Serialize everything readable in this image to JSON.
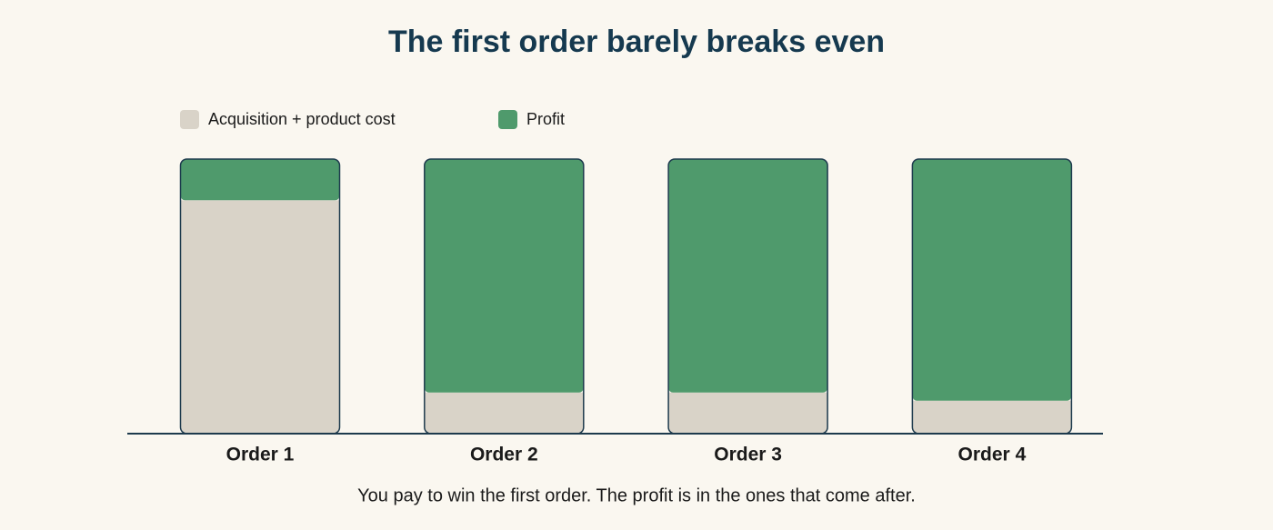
{
  "chart_data": {
    "type": "stacked_bar",
    "title": "The first order barely breaks even",
    "caption": "You pay to win the first order. The profit is in the ones that come after.",
    "categories": [
      "Order 1",
      "Order 2",
      "Order 3",
      "Order 4"
    ],
    "series": [
      {
        "name": "Acquisition + product cost",
        "color": "#d9d3c8",
        "values": [
          85,
          15,
          15,
          12
        ]
      },
      {
        "name": "Profit",
        "color": "#4f9a6c",
        "values": [
          15,
          85,
          85,
          88
        ]
      }
    ]
  }
}
